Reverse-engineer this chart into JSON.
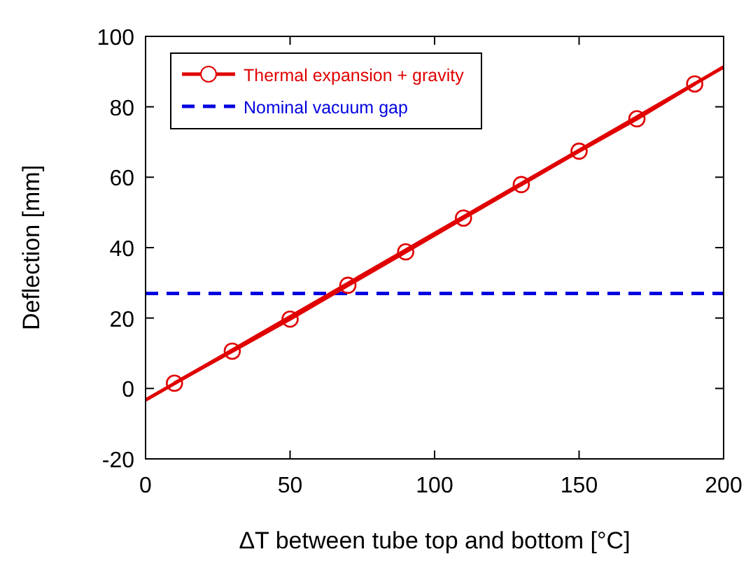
{
  "chart_data": {
    "type": "line",
    "xlabel": "ΔT between tube top and bottom [°C]",
    "ylabel": "Deflection [mm]",
    "xlim": [
      0,
      200
    ],
    "xticks": [
      0,
      50,
      100,
      150,
      200
    ],
    "ylim": [
      -20,
      100
    ],
    "yticks": [
      -20,
      0,
      20,
      40,
      60,
      80,
      100
    ],
    "grid": false,
    "legend": "top left",
    "line_style": "solid",
    "series": [
      {
        "name": "Thermal expansion + gravity",
        "color": "#e00000",
        "marker": "circle",
        "x": [
          10,
          30,
          50,
          70,
          90,
          110,
          130,
          150,
          170,
          190
        ],
        "values": [
          1.5,
          10.6,
          19.7,
          29.3,
          38.8,
          48.4,
          57.9,
          67.4,
          76.6,
          86.5
        ]
      },
      {
        "color": "#e00000",
        "marker": "none",
        "x": [
          0,
          200
        ],
        "values": [
          -3.3,
          91.3
        ]
      }
    ],
    "ref_lines": [
      {
        "axis": "y",
        "value": 27,
        "label": "Nominal vacuum gap",
        "color": "#0000e0",
        "line_style": "dashed"
      }
    ]
  }
}
